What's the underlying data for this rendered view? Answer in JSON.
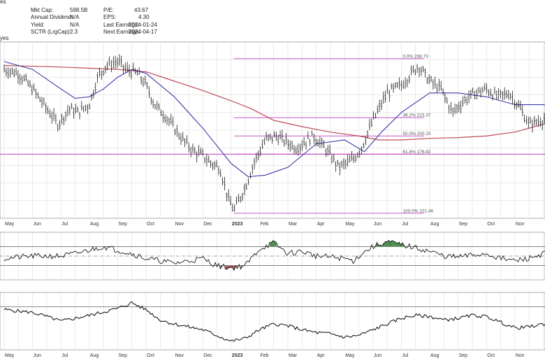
{
  "header": {
    "truncated_top": "es",
    "left_partial": "yes",
    "fields": [
      {
        "label": "Mkt Cap:",
        "value": "598.5B"
      },
      {
        "label": "Annual Dividend:",
        "value": "N/A"
      },
      {
        "label": "Yield:",
        "value": "N/A"
      },
      {
        "label": "SCTR (LrgCap):",
        "value": "2.3"
      },
      {
        "label": "P/E:",
        "value": "43.67"
      },
      {
        "label": "EPS:",
        "value": "4.30"
      },
      {
        "label": "Last Earnings:",
        "value": "2024-01-24"
      },
      {
        "label": "Next Earnings:",
        "value": "2024-04-17"
      }
    ]
  },
  "chart_data": [
    {
      "type": "line",
      "title": "",
      "x_labels": [
        "May",
        "Jun",
        "Jul",
        "Aug",
        "Sep",
        "Oct",
        "Nov",
        "Dec",
        "2023",
        "Feb",
        "Mar",
        "Apr",
        "May",
        "Jun",
        "Jul",
        "Aug",
        "Sep",
        "Oct",
        "Nov"
      ],
      "ylim": [
        95,
        320
      ],
      "grid": true,
      "price_line_color": "#222222",
      "ma50_color": "#3a3aa8",
      "ma200_color": "#c04a5a",
      "fib_color": "#c040c0",
      "fib_levels": [
        {
          "label": "0.0% 298.73",
          "value": 298.73
        },
        {
          "label": "38.2% 223.37",
          "value": 223.37
        },
        {
          "label": "50.0% 200.10",
          "value": 200.1
        },
        {
          "label": "61.8% 176.82",
          "value": 176.82
        },
        {
          "label": "100.0% 101.46",
          "value": 101.46
        }
      ],
      "horizontal_line": 176.82,
      "price": [
        [
          0,
          285
        ],
        [
          0.5,
          280
        ],
        [
          1,
          260
        ],
        [
          1.5,
          235
        ],
        [
          1.9,
          215
        ],
        [
          2.3,
          235
        ],
        [
          2.6,
          230
        ],
        [
          3,
          240
        ],
        [
          3.3,
          275
        ],
        [
          3.6,
          290
        ],
        [
          4,
          295
        ],
        [
          4.3,
          285
        ],
        [
          4.7,
          280
        ],
        [
          5,
          265
        ],
        [
          5.3,
          240
        ],
        [
          5.7,
          225
        ],
        [
          6,
          210
        ],
        [
          6.3,
          195
        ],
        [
          6.7,
          180
        ],
        [
          7,
          175
        ],
        [
          7.3,
          165
        ],
        [
          7.6,
          160
        ],
        [
          7.9,
          120
        ],
        [
          8.1,
          105
        ],
        [
          8.5,
          135
        ],
        [
          8.8,
          165
        ],
        [
          9.2,
          195
        ],
        [
          9.6,
          200
        ],
        [
          10.3,
          185
        ],
        [
          10.9,
          200
        ],
        [
          11.3,
          185
        ],
        [
          11.8,
          160
        ],
        [
          12.3,
          170
        ],
        [
          12.6,
          185
        ],
        [
          13,
          220
        ],
        [
          13.5,
          255
        ],
        [
          14,
          265
        ],
        [
          14.6,
          290
        ],
        [
          15,
          270
        ],
        [
          15.4,
          260
        ],
        [
          15.8,
          230
        ],
        [
          16.2,
          245
        ],
        [
          16.6,
          255
        ],
        [
          17,
          260
        ],
        [
          17.4,
          250
        ],
        [
          17.8,
          255
        ],
        [
          18.2,
          235
        ],
        [
          18.5,
          215
        ],
        [
          18.9,
          220
        ],
        [
          19.3,
          225
        ],
        [
          19.6,
          228
        ]
      ],
      "ma50": [
        [
          0,
          295
        ],
        [
          1,
          285
        ],
        [
          2,
          260
        ],
        [
          2.5,
          248
        ],
        [
          3,
          250
        ],
        [
          3.5,
          260
        ],
        [
          4,
          275
        ],
        [
          4.5,
          285
        ],
        [
          5,
          280
        ],
        [
          6,
          250
        ],
        [
          7,
          210
        ],
        [
          8,
          165
        ],
        [
          8.6,
          148
        ],
        [
          9.2,
          150
        ],
        [
          10,
          160
        ],
        [
          11,
          190
        ],
        [
          12,
          195
        ],
        [
          12.7,
          180
        ],
        [
          13.3,
          205
        ],
        [
          14,
          230
        ],
        [
          15,
          255
        ],
        [
          16,
          255
        ],
        [
          17,
          250
        ],
        [
          18,
          240
        ],
        [
          19,
          240
        ],
        [
          19.6,
          233
        ]
      ],
      "ma200": [
        [
          0,
          290
        ],
        [
          2,
          288
        ],
        [
          4,
          285
        ],
        [
          5,
          282
        ],
        [
          6,
          270
        ],
        [
          7,
          258
        ],
        [
          8,
          245
        ],
        [
          8.7,
          235
        ],
        [
          9.5,
          220
        ],
        [
          10.5,
          212
        ],
        [
          11.5,
          205
        ],
        [
          12.5,
          200
        ],
        [
          13.2,
          195
        ],
        [
          14,
          195
        ],
        [
          15,
          197
        ],
        [
          16,
          198
        ],
        [
          17,
          200
        ],
        [
          18,
          205
        ],
        [
          19,
          215
        ],
        [
          19.6,
          222
        ]
      ]
    },
    {
      "type": "line",
      "title": "",
      "x_labels": [
        "May",
        "Jun",
        "Jul",
        "Aug",
        "Sep",
        "Oct",
        "Nov",
        "Dec",
        "2023",
        "Feb",
        "Mar",
        "Apr",
        "May",
        "Jun",
        "Jul",
        "Aug",
        "Sep",
        "Oct",
        "Nov"
      ],
      "ylim": [
        0,
        100
      ],
      "upper_level": 70,
      "mid_level": 50,
      "lower_level": 30,
      "overbought_fill": "#4a8a4a",
      "oversold_fill": "#a05050",
      "values": [
        [
          0,
          45
        ],
        [
          1,
          50
        ],
        [
          2,
          50
        ],
        [
          2.5,
          55
        ],
        [
          3.5,
          70
        ],
        [
          4.5,
          55
        ],
        [
          5,
          45
        ],
        [
          5.5,
          40
        ],
        [
          6,
          35
        ],
        [
          6.5,
          40
        ],
        [
          7,
          45
        ],
        [
          7.5,
          30
        ],
        [
          8,
          25
        ],
        [
          8.5,
          30
        ],
        [
          9,
          65
        ],
        [
          9.5,
          78
        ],
        [
          10,
          55
        ],
        [
          10.5,
          60
        ],
        [
          11,
          50
        ],
        [
          11.5,
          48
        ],
        [
          12,
          45
        ],
        [
          12.3,
          40
        ],
        [
          12.6,
          55
        ],
        [
          13,
          70
        ],
        [
          13.5,
          80
        ],
        [
          13.9,
          75
        ],
        [
          14.3,
          70
        ],
        [
          15,
          60
        ],
        [
          15.5,
          50
        ],
        [
          16,
          48
        ],
        [
          16.5,
          52
        ],
        [
          17,
          55
        ],
        [
          17.5,
          45
        ],
        [
          18,
          40
        ],
        [
          18.5,
          45
        ],
        [
          19,
          55
        ],
        [
          19.6,
          60
        ]
      ]
    },
    {
      "type": "line",
      "title": "",
      "x_labels": [
        "May",
        "Jun",
        "Jul",
        "Aug",
        "Sep",
        "Oct",
        "Nov",
        "Dec",
        "2023",
        "Feb",
        "Mar",
        "Apr",
        "May",
        "Jun",
        "Jul",
        "Aug",
        "Sep",
        "Oct",
        "Nov"
      ],
      "ylim": [
        0,
        100
      ],
      "reference_level": 75,
      "values": [
        [
          0,
          70
        ],
        [
          1,
          65
        ],
        [
          1.5,
          58
        ],
        [
          2,
          50
        ],
        [
          2.5,
          55
        ],
        [
          3,
          60
        ],
        [
          4,
          72
        ],
        [
          4.5,
          82
        ],
        [
          5,
          70
        ],
        [
          5.5,
          52
        ],
        [
          6,
          45
        ],
        [
          7,
          35
        ],
        [
          7.5,
          25
        ],
        [
          8,
          15
        ],
        [
          8.5,
          20
        ],
        [
          9,
          35
        ],
        [
          9.5,
          45
        ],
        [
          10,
          42
        ],
        [
          10.5,
          35
        ],
        [
          11,
          30
        ],
        [
          11.5,
          28
        ],
        [
          12,
          22
        ],
        [
          12.5,
          25
        ],
        [
          13,
          35
        ],
        [
          13.5,
          45
        ],
        [
          14,
          55
        ],
        [
          14.5,
          60
        ],
        [
          15,
          58
        ],
        [
          15.5,
          52
        ],
        [
          16,
          55
        ],
        [
          16.5,
          60
        ],
        [
          17,
          58
        ],
        [
          17.5,
          48
        ],
        [
          18,
          38
        ],
        [
          18.5,
          40
        ],
        [
          19,
          45
        ],
        [
          19.6,
          40
        ]
      ]
    }
  ]
}
